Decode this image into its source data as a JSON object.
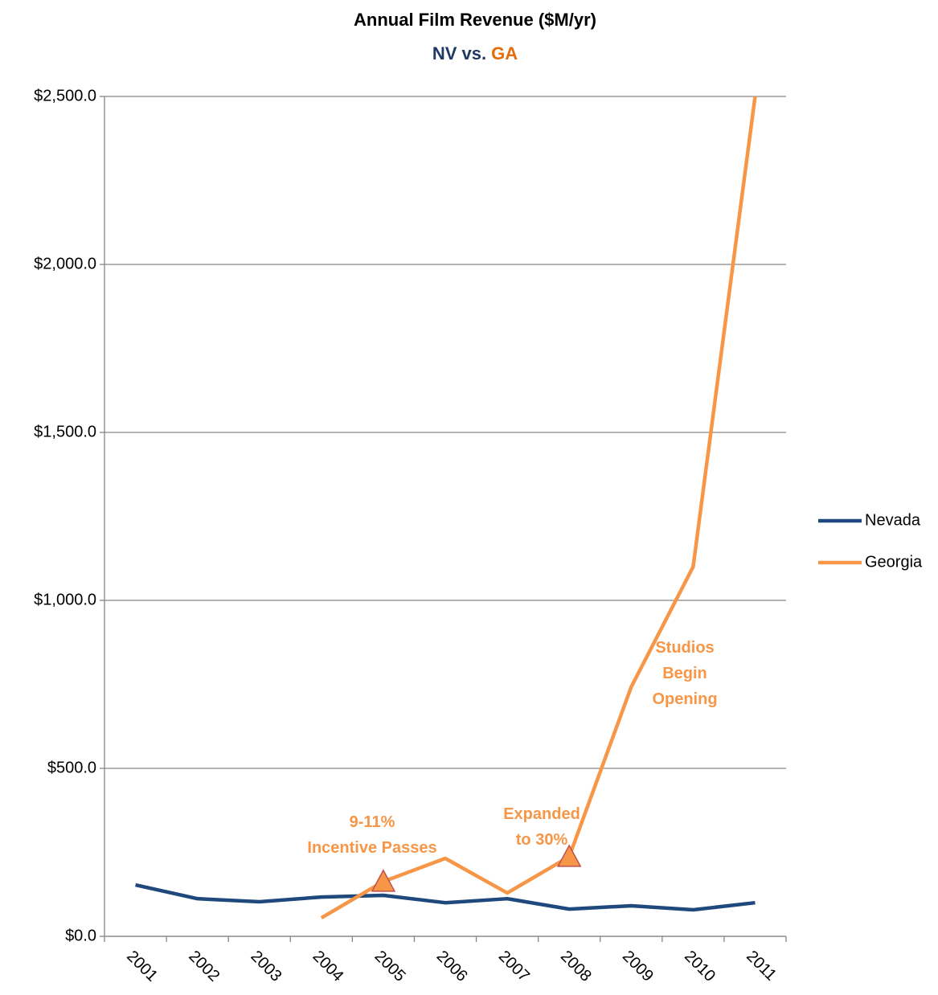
{
  "chart_data": {
    "type": "line",
    "title": "Annual Film Revenue ($M/yr)",
    "subtitle": [
      "NV",
      "vs.",
      "GA"
    ],
    "subtitle_colors": [
      "#1f3864",
      "#1f3864",
      "#e46c0a"
    ],
    "categories": [
      "2001",
      "2002",
      "2003",
      "2004",
      "2005",
      "2006",
      "2007",
      "2008",
      "2009",
      "2010",
      "2011"
    ],
    "series": [
      {
        "name": "Nevada",
        "color": "#1f497d",
        "values": [
          153,
          112,
          103,
          117,
          122,
          100,
          112,
          81,
          91,
          79,
          100
        ]
      },
      {
        "name": "Georgia",
        "color": "#f79646",
        "values": [
          null,
          null,
          null,
          55,
          163,
          232,
          129,
          237,
          742,
          1100,
          2500
        ]
      }
    ],
    "ylim": [
      0,
      2500
    ],
    "yticks": [
      {
        "value": 0,
        "label": "$0.0"
      },
      {
        "value": 500,
        "label": "$500.0"
      },
      {
        "value": 1000,
        "label": "$1,000.0"
      },
      {
        "value": 1500,
        "label": "$1,500.0"
      },
      {
        "value": 2000,
        "label": "$2,000.0"
      },
      {
        "value": 2500,
        "label": "$2,500.0"
      }
    ],
    "grid": true,
    "legend": "right",
    "annotations": [
      {
        "lines": [
          "9-11%",
          "Incentive Passes"
        ],
        "color": "#f79646"
      },
      {
        "lines": [
          "Expanded",
          "to 30%"
        ],
        "color": "#f79646"
      },
      {
        "lines": [
          "Studios",
          "Begin",
          "Opening"
        ],
        "color": "#f79646"
      }
    ]
  }
}
